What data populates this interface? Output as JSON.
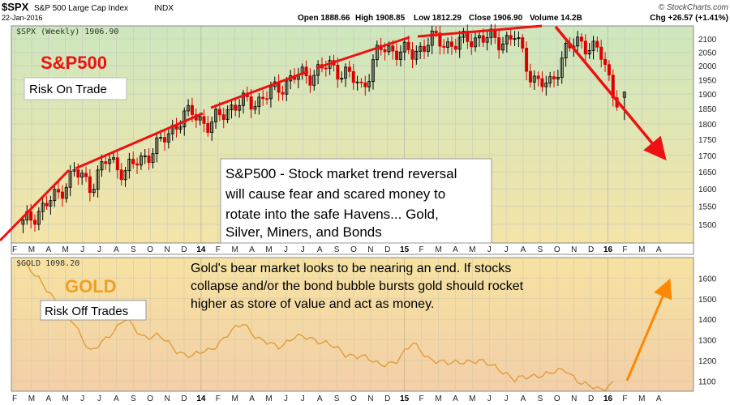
{
  "header": {
    "symbol": "$SPX",
    "name": "S&P 500 Large Cap Index",
    "exchange": "INDX",
    "date": "22-Jan-2016",
    "open": "Open 1888.66",
    "high": "High 1908.85",
    "low": "Low 1812.29",
    "close": "Close 1906.90",
    "volume": "Volume 14.2B",
    "change": "Chg +26.57 (+1.41%)",
    "copyright": "© StockCharts.com"
  },
  "panels": {
    "top_legend": "$SPX (Weekly) 1906.90",
    "bottom_legend": "$GOLD 1098.20"
  },
  "labels": {
    "spx_title": "S&P500",
    "risk_on": "Risk On Trade",
    "gold_title": "GOLD",
    "risk_off": "Risk Off Trades"
  },
  "annotation_spx": {
    "line1": "S&P500 - Stock market trend reversal",
    "line2": "will cause fear and scared money to",
    "line3": "rotate into the safe Havens... Gold,",
    "line4": "Silver, Miners, and Bonds"
  },
  "annotation_gold": {
    "line1": "Gold's bear market looks to be nearing an end. If stocks",
    "line2": "collapse and/or the bond bubble bursts gold should rocket",
    "line3": "higher as store of value and act as money."
  },
  "x_axis": {
    "labels": [
      "F",
      "M",
      "A",
      "M",
      "J",
      "J",
      "A",
      "S",
      "O",
      "N",
      "D",
      "14",
      "F",
      "M",
      "A",
      "M",
      "J",
      "J",
      "A",
      "S",
      "O",
      "N",
      "D",
      "15",
      "F",
      "M",
      "A",
      "M",
      "J",
      "J",
      "A",
      "S",
      "O",
      "N",
      "D",
      "16",
      "F",
      "M",
      "A"
    ],
    "year_labels": [
      "14",
      "15",
      "16"
    ]
  },
  "chart_data": [
    {
      "type": "candlestick",
      "title": "$SPX (Weekly) 1906.90",
      "interval": "weekly",
      "x_range": [
        "2013-02",
        "2016-04"
      ],
      "ylim": [
        1450,
        2150
      ],
      "y_scale": "log",
      "y_ticks": [
        1500,
        1550,
        1600,
        1650,
        1700,
        1750,
        1800,
        1850,
        1900,
        1950,
        2000,
        2050,
        2100
      ],
      "up_color": "#000000",
      "down_color": "#dd0000",
      "background": [
        "#cde7be",
        "#f5e8a8"
      ],
      "grid": true,
      "series_points": [
        [
          "2013-02",
          1500
        ],
        [
          "2013-03",
          1540
        ],
        [
          "2013-04",
          1580
        ],
        [
          "2013-05",
          1650
        ],
        [
          "2013-06",
          1610
        ],
        [
          "2013-07",
          1690
        ],
        [
          "2013-08",
          1650
        ],
        [
          "2013-09",
          1690
        ],
        [
          "2013-10",
          1730
        ],
        [
          "2013-11",
          1800
        ],
        [
          "2013-12",
          1840
        ],
        [
          "2014-01",
          1790
        ],
        [
          "2014-02",
          1850
        ],
        [
          "2014-03",
          1870
        ],
        [
          "2014-04",
          1880
        ],
        [
          "2014-05",
          1920
        ],
        [
          "2014-06",
          1960
        ],
        [
          "2014-07",
          1970
        ],
        [
          "2014-08",
          2000
        ],
        [
          "2014-09",
          1975
        ],
        [
          "2014-10",
          1920
        ],
        [
          "2014-11",
          2060
        ],
        [
          "2014-12",
          2060
        ],
        [
          "2015-01",
          2040
        ],
        [
          "2015-02",
          2100
        ],
        [
          "2015-03",
          2080
        ],
        [
          "2015-04",
          2090
        ],
        [
          "2015-05",
          2110
        ],
        [
          "2015-06",
          2090
        ],
        [
          "2015-07",
          2110
        ],
        [
          "2015-08",
          1960
        ],
        [
          "2015-09",
          1920
        ],
        [
          "2015-10",
          2060
        ],
        [
          "2015-11",
          2090
        ],
        [
          "2015-12",
          2050
        ],
        [
          "2016-01",
          1880
        ],
        [
          "2016-01-22",
          1906.9
        ]
      ],
      "last_candle": {
        "open": 1888.66,
        "high": 1908.85,
        "low": 1812.29,
        "close": 1906.9
      }
    },
    {
      "type": "line",
      "title": "$GOLD 1098.20",
      "x_range": [
        "2013-02",
        "2016-04"
      ],
      "ylim": [
        1050,
        1700
      ],
      "y_ticks": [
        1100,
        1200,
        1300,
        1400,
        1500,
        1600
      ],
      "line_color": "#e8a030",
      "grid": true,
      "series": [
        {
          "values": [
            [
              "2013-02",
              1670
            ],
            [
              "2013-03",
              1600
            ],
            [
              "2013-04",
              1470
            ],
            [
              "2013-05",
              1390
            ],
            [
              "2013-06",
              1230
            ],
            [
              "2013-07",
              1320
            ],
            [
              "2013-08",
              1400
            ],
            [
              "2013-09",
              1320
            ],
            [
              "2013-10",
              1320
            ],
            [
              "2013-11",
              1250
            ],
            [
              "2013-12",
              1220
            ],
            [
              "2014-01",
              1250
            ],
            [
              "2014-02",
              1320
            ],
            [
              "2014-03",
              1380
            ],
            [
              "2014-04",
              1300
            ],
            [
              "2014-05",
              1260
            ],
            [
              "2014-06",
              1320
            ],
            [
              "2014-07",
              1300
            ],
            [
              "2014-08",
              1290
            ],
            [
              "2014-09",
              1220
            ],
            [
              "2014-10",
              1230
            ],
            [
              "2014-11",
              1170
            ],
            [
              "2014-12",
              1200
            ],
            [
              "2015-01",
              1280
            ],
            [
              "2015-02",
              1210
            ],
            [
              "2015-03",
              1180
            ],
            [
              "2015-04",
              1200
            ],
            [
              "2015-05",
              1190
            ],
            [
              "2015-06",
              1170
            ],
            [
              "2015-07",
              1100
            ],
            [
              "2015-08",
              1130
            ],
            [
              "2015-09",
              1130
            ],
            [
              "2015-10",
              1160
            ],
            [
              "2015-11",
              1080
            ],
            [
              "2015-12",
              1060
            ],
            [
              "2016-01",
              1098.2
            ]
          ]
        }
      ]
    }
  ],
  "annotations_drawn": {
    "trendline_color": "#ee1111",
    "arrow_color": "#ff8800"
  }
}
